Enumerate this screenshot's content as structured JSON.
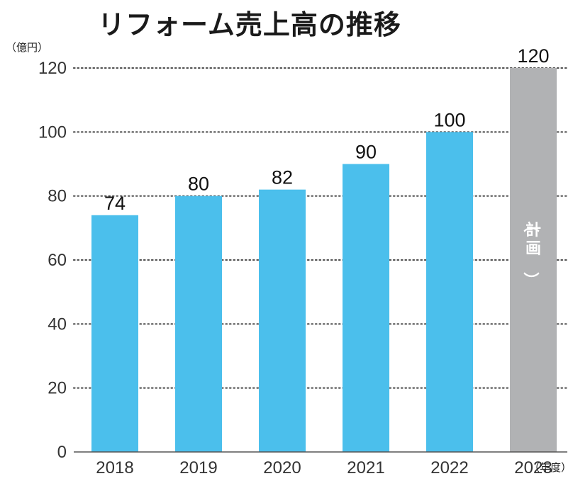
{
  "chart_data": {
    "type": "bar",
    "title": "リフォーム売上高の推移",
    "ylabel": "（億円）",
    "xlabel": "（年度）",
    "categories": [
      "2018",
      "2019",
      "2020",
      "2021",
      "2022",
      "2023"
    ],
    "values": [
      74,
      80,
      82,
      90,
      100,
      120
    ],
    "ylim": [
      0,
      120
    ],
    "yticks": [
      0,
      20,
      40,
      60,
      80,
      100,
      120
    ],
    "grid": "dotted",
    "bar_colors": [
      "#4bbfec",
      "#4bbfec",
      "#4bbfec",
      "#4bbfec",
      "#4bbfec",
      "#b1b2b4"
    ],
    "annotations": [
      {
        "category": "2023",
        "text": "（計画）"
      }
    ]
  }
}
